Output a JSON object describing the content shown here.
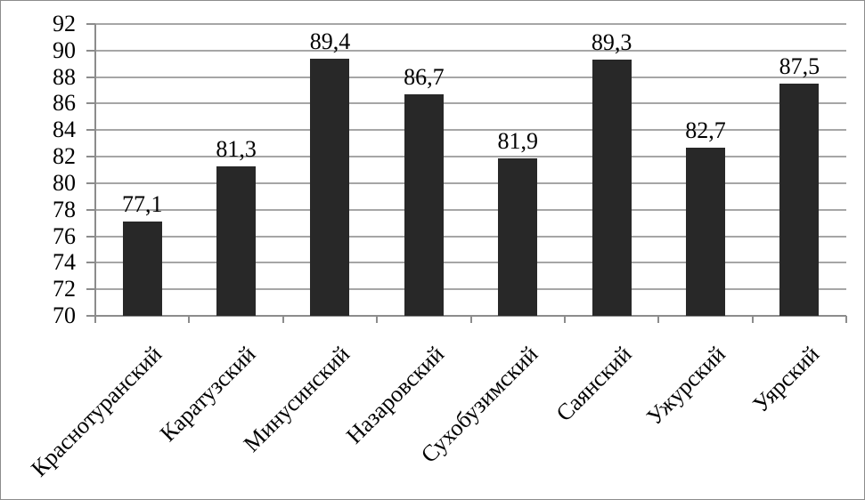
{
  "figure": {
    "background": "#ffffff",
    "border_color": "#8c8c8c"
  },
  "chart_data": {
    "type": "bar",
    "title": "",
    "categories": [
      "Краснотуранский",
      "Каратузский",
      "Минусинский",
      "Назаровский",
      "Сухобузимский",
      "Саянский",
      "Ужурский",
      "Уярский"
    ],
    "values": [
      77.1,
      81.3,
      89.4,
      86.7,
      81.9,
      89.3,
      82.7,
      87.5
    ],
    "value_labels": [
      "77,1",
      "81,3",
      "89,4",
      "86,7",
      "81,9",
      "89,3",
      "82,7",
      "87,5"
    ],
    "xlabel": "",
    "ylabel": "",
    "ylim": [
      70,
      92
    ],
    "yticks": [
      70,
      72,
      74,
      76,
      78,
      80,
      82,
      84,
      86,
      88,
      90,
      92
    ],
    "ytick_labels": [
      "70",
      "72",
      "74",
      "76",
      "78",
      "80",
      "82",
      "84",
      "86",
      "88",
      "90",
      "92"
    ],
    "grid": "horizontal",
    "legend": "none",
    "bar_color": "#282828",
    "gridline_color": "#a6a6a6",
    "axis_color": "#8c8c8c",
    "text_color": "#000000"
  }
}
